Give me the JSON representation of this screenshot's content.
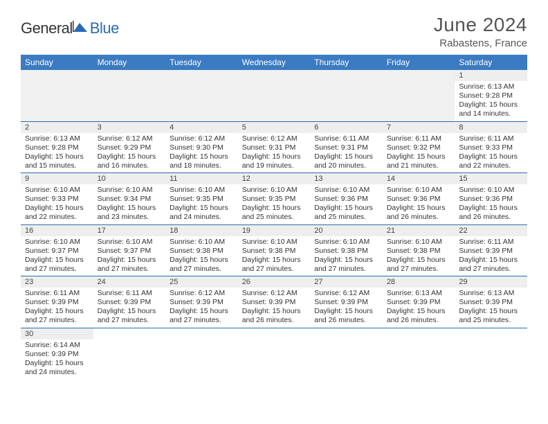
{
  "logo": {
    "text1": "General",
    "text2": "Blue"
  },
  "title": "June 2024",
  "location": "Rabastens, France",
  "colors": {
    "header_bg": "#3a7bc2",
    "header_text": "#ffffff",
    "accent": "#2a6ab5",
    "daynum_bg": "#eeeeee",
    "body_text": "#333333",
    "title_text": "#555555"
  },
  "columns": [
    "Sunday",
    "Monday",
    "Tuesday",
    "Wednesday",
    "Thursday",
    "Friday",
    "Saturday"
  ],
  "weeks": [
    [
      null,
      null,
      null,
      null,
      null,
      null,
      {
        "d": "1",
        "sunrise": "6:13 AM",
        "sunset": "9:28 PM",
        "daylight": "15 hours and 14 minutes."
      }
    ],
    [
      {
        "d": "2",
        "sunrise": "6:13 AM",
        "sunset": "9:28 PM",
        "daylight": "15 hours and 15 minutes."
      },
      {
        "d": "3",
        "sunrise": "6:12 AM",
        "sunset": "9:29 PM",
        "daylight": "15 hours and 16 minutes."
      },
      {
        "d": "4",
        "sunrise": "6:12 AM",
        "sunset": "9:30 PM",
        "daylight": "15 hours and 18 minutes."
      },
      {
        "d": "5",
        "sunrise": "6:12 AM",
        "sunset": "9:31 PM",
        "daylight": "15 hours and 19 minutes."
      },
      {
        "d": "6",
        "sunrise": "6:11 AM",
        "sunset": "9:31 PM",
        "daylight": "15 hours and 20 minutes."
      },
      {
        "d": "7",
        "sunrise": "6:11 AM",
        "sunset": "9:32 PM",
        "daylight": "15 hours and 21 minutes."
      },
      {
        "d": "8",
        "sunrise": "6:11 AM",
        "sunset": "9:33 PM",
        "daylight": "15 hours and 22 minutes."
      }
    ],
    [
      {
        "d": "9",
        "sunrise": "6:10 AM",
        "sunset": "9:33 PM",
        "daylight": "15 hours and 22 minutes."
      },
      {
        "d": "10",
        "sunrise": "6:10 AM",
        "sunset": "9:34 PM",
        "daylight": "15 hours and 23 minutes."
      },
      {
        "d": "11",
        "sunrise": "6:10 AM",
        "sunset": "9:35 PM",
        "daylight": "15 hours and 24 minutes."
      },
      {
        "d": "12",
        "sunrise": "6:10 AM",
        "sunset": "9:35 PM",
        "daylight": "15 hours and 25 minutes."
      },
      {
        "d": "13",
        "sunrise": "6:10 AM",
        "sunset": "9:36 PM",
        "daylight": "15 hours and 25 minutes."
      },
      {
        "d": "14",
        "sunrise": "6:10 AM",
        "sunset": "9:36 PM",
        "daylight": "15 hours and 26 minutes."
      },
      {
        "d": "15",
        "sunrise": "6:10 AM",
        "sunset": "9:36 PM",
        "daylight": "15 hours and 26 minutes."
      }
    ],
    [
      {
        "d": "16",
        "sunrise": "6:10 AM",
        "sunset": "9:37 PM",
        "daylight": "15 hours and 27 minutes."
      },
      {
        "d": "17",
        "sunrise": "6:10 AM",
        "sunset": "9:37 PM",
        "daylight": "15 hours and 27 minutes."
      },
      {
        "d": "18",
        "sunrise": "6:10 AM",
        "sunset": "9:38 PM",
        "daylight": "15 hours and 27 minutes."
      },
      {
        "d": "19",
        "sunrise": "6:10 AM",
        "sunset": "9:38 PM",
        "daylight": "15 hours and 27 minutes."
      },
      {
        "d": "20",
        "sunrise": "6:10 AM",
        "sunset": "9:38 PM",
        "daylight": "15 hours and 27 minutes."
      },
      {
        "d": "21",
        "sunrise": "6:10 AM",
        "sunset": "9:38 PM",
        "daylight": "15 hours and 27 minutes."
      },
      {
        "d": "22",
        "sunrise": "6:11 AM",
        "sunset": "9:39 PM",
        "daylight": "15 hours and 27 minutes."
      }
    ],
    [
      {
        "d": "23",
        "sunrise": "6:11 AM",
        "sunset": "9:39 PM",
        "daylight": "15 hours and 27 minutes."
      },
      {
        "d": "24",
        "sunrise": "6:11 AM",
        "sunset": "9:39 PM",
        "daylight": "15 hours and 27 minutes."
      },
      {
        "d": "25",
        "sunrise": "6:12 AM",
        "sunset": "9:39 PM",
        "daylight": "15 hours and 27 minutes."
      },
      {
        "d": "26",
        "sunrise": "6:12 AM",
        "sunset": "9:39 PM",
        "daylight": "15 hours and 26 minutes."
      },
      {
        "d": "27",
        "sunrise": "6:12 AM",
        "sunset": "9:39 PM",
        "daylight": "15 hours and 26 minutes."
      },
      {
        "d": "28",
        "sunrise": "6:13 AM",
        "sunset": "9:39 PM",
        "daylight": "15 hours and 26 minutes."
      },
      {
        "d": "29",
        "sunrise": "6:13 AM",
        "sunset": "9:39 PM",
        "daylight": "15 hours and 25 minutes."
      }
    ],
    [
      {
        "d": "30",
        "sunrise": "6:14 AM",
        "sunset": "9:39 PM",
        "daylight": "15 hours and 24 minutes."
      },
      null,
      null,
      null,
      null,
      null,
      null
    ]
  ],
  "labels": {
    "sunrise_prefix": "Sunrise: ",
    "sunset_prefix": "Sunset: ",
    "daylight_prefix": "Daylight: "
  }
}
